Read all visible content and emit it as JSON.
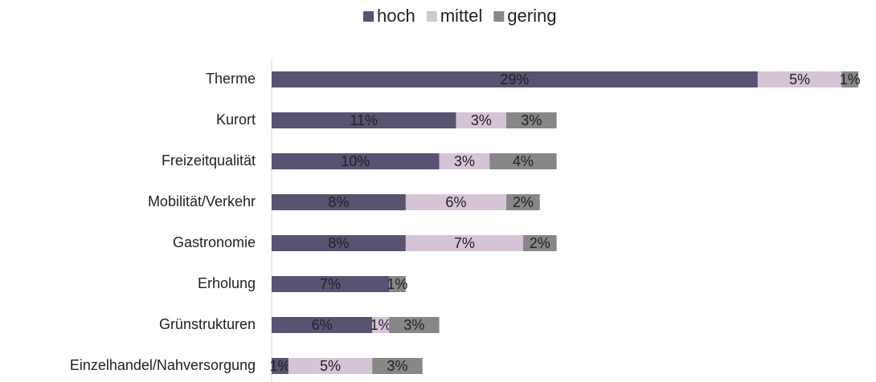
{
  "chart_data": {
    "type": "stacked-barh",
    "categories": [
      "Therme",
      "Kurort",
      "Freizeitqualität",
      "Mobilität/Verkehr",
      "Gastronomie",
      "Erholung",
      "Grünstrukturen",
      "Einzelhandel/Nahversorgung"
    ],
    "series": [
      {
        "name": "hoch",
        "color": "#575371",
        "label_color": "#ffffff",
        "values": [
          29,
          11,
          10,
          8,
          8,
          7,
          6,
          1
        ],
        "value_labels": [
          "29%",
          "11%",
          "10%",
          "8%",
          "8%",
          "7%",
          "6%",
          "1%"
        ]
      },
      {
        "name": "mittel",
        "color": "#d5c3d6",
        "label_color": "#000000",
        "values": [
          5,
          3,
          3,
          6,
          7,
          null,
          1,
          5
        ],
        "value_labels": [
          "5%",
          "3%",
          "3%",
          "6%",
          "7%",
          null,
          "1%",
          "5%"
        ]
      },
      {
        "name": "gering",
        "color": "#878787",
        "label_color": "#ffffff",
        "values": [
          1,
          3,
          4,
          2,
          2,
          1,
          3,
          3
        ],
        "value_labels": [
          "1%",
          "3%",
          "4%",
          "2%",
          "2%",
          "1%",
          "3%",
          "3%"
        ]
      }
    ],
    "legend": "top"
  }
}
